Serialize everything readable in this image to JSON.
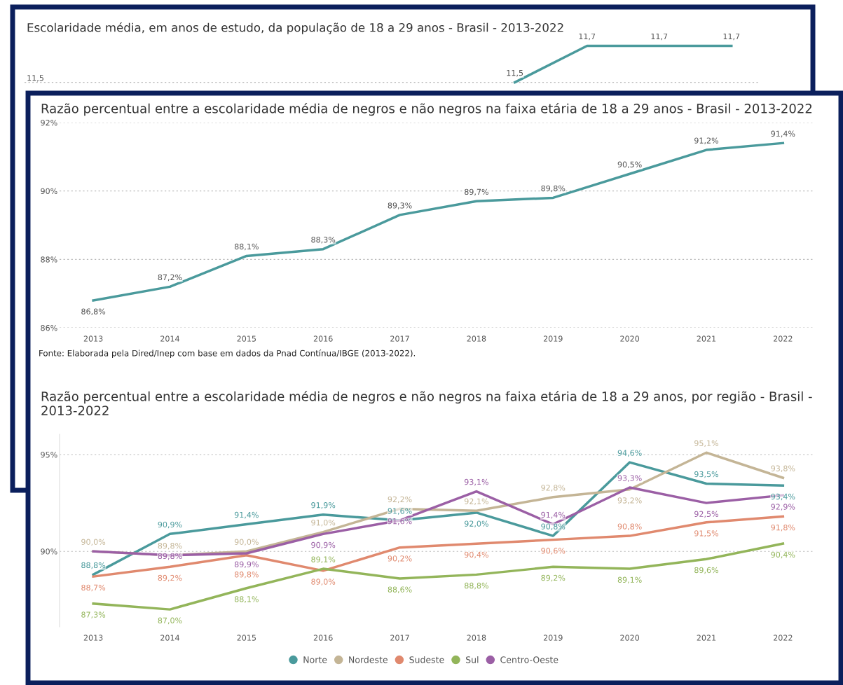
{
  "chart_data": [
    {
      "type": "line",
      "title": "Escolaridade média, em anos de estudo, da população de 18 a 29 anos - Brasil - 2013-2022",
      "categories": [
        null,
        null,
        null,
        null,
        null,
        null,
        null,
        null,
        null,
        null
      ],
      "ref_lines": [
        {
          "axis": "y",
          "value": 11.5,
          "label": "11,5",
          "line_style": "dotted"
        }
      ],
      "series": [
        {
          "color": "#4a9a9c",
          "values": [
            null,
            null,
            null,
            null,
            null,
            null,
            11.5,
            11.7,
            11.7,
            11.7
          ],
          "value_labels": [
            null,
            null,
            null,
            null,
            null,
            null,
            "11,5",
            "11,7",
            "11,7",
            "11,7"
          ]
        }
      ]
    },
    {
      "type": "line",
      "title": "Razão percentual entre a escolaridade média de negros e não negros na faixa etária de 18 a 29 anos - Brasil - 2013-2022",
      "categories": [
        "2013",
        "2014",
        "2015",
        "2016",
        "2017",
        "2018",
        "2019",
        "2020",
        "2021",
        "2022"
      ],
      "ylim": [
        86,
        92
      ],
      "yticks": [
        {
          "value": 86,
          "label": "86%"
        },
        {
          "value": 88,
          "label": "88%"
        },
        {
          "value": 90,
          "label": "90%"
        },
        {
          "value": 92,
          "label": "92%"
        }
      ],
      "grid": "y",
      "annotations": [
        "Fonte: Elaborada pela Dired/Inep com base em dados da Pnad Contínua/IBGE (2013-2022)."
      ],
      "series": [
        {
          "color": "#4a9a9c",
          "values": [
            86.8,
            87.2,
            88.1,
            88.3,
            89.3,
            89.7,
            89.8,
            90.5,
            91.2,
            91.4
          ],
          "value_labels": [
            "86,8%",
            "87,2%",
            "88,1%",
            "88,3%",
            "89,3%",
            "89,7%",
            "89,8%",
            "90,5%",
            "91,2%",
            "91,4%"
          ]
        }
      ]
    },
    {
      "type": "line",
      "title": "Razão percentual entre a escolaridade média de negros e não negros na faixa etária de 18 a 29 anos, por região - Brasil - 2013-2022",
      "categories": [
        "2013",
        "2014",
        "2015",
        "2016",
        "2017",
        "2018",
        "2019",
        "2020",
        "2021",
        "2022"
      ],
      "ylim": [
        86.1,
        96.05
      ],
      "yticks": [
        {
          "value": 90,
          "label": "90%"
        },
        {
          "value": 95,
          "label": "95%"
        }
      ],
      "grid": "y",
      "legend": "bottom",
      "series": [
        {
          "name": "Norte",
          "color": "#4a9a9c",
          "values": [
            88.8,
            90.9,
            91.4,
            91.9,
            91.6,
            92.0,
            90.8,
            94.6,
            93.5,
            93.4
          ],
          "value_labels": [
            "88,8%",
            "90,9%",
            "91,4%",
            "91,9%",
            "91,6%",
            "92,0%",
            "90,8%",
            "94,6%",
            "93,5%",
            "93,4%"
          ]
        },
        {
          "name": "Nordeste",
          "color": "#c4b596",
          "values": [
            90.0,
            89.8,
            90.0,
            91.0,
            92.2,
            92.1,
            92.8,
            93.2,
            95.1,
            93.8
          ],
          "value_labels": [
            "90,0%",
            "89,8%",
            "90,0%",
            "91,0%",
            "92,2%",
            "92,1%",
            "92,8%",
            "93,2%",
            "95,1%",
            "93,8%"
          ]
        },
        {
          "name": "Sudeste",
          "color": "#e0896e",
          "values": [
            88.7,
            89.2,
            89.8,
            89.0,
            90.2,
            90.4,
            90.6,
            90.8,
            91.5,
            91.8
          ],
          "value_labels": [
            "88,7%",
            "89,2%",
            "89,8%",
            "89,0%",
            "90,2%",
            "90,4%",
            "90,6%",
            "90,8%",
            "91,5%",
            "91,8%"
          ]
        },
        {
          "name": "Sul",
          "color": "#93b55a",
          "values": [
            87.3,
            87.0,
            88.1,
            89.1,
            88.6,
            88.8,
            89.2,
            89.1,
            89.6,
            90.4
          ],
          "value_labels": [
            "87,3%",
            "87,0%",
            "88,1%",
            "89,1%",
            "88,6%",
            "88,8%",
            "89,2%",
            "89,1%",
            "89,6%",
            "90,4%"
          ]
        },
        {
          "name": "Centro-Oeste",
          "color": "#9b5fa5",
          "values": [
            90.0,
            89.8,
            89.9,
            90.9,
            91.6,
            93.1,
            91.4,
            93.3,
            92.5,
            92.9
          ],
          "value_labels": [
            null,
            "89,8%",
            "89,9%",
            "90,9%",
            "91,6%",
            "93,1%",
            "91,4%",
            "93,3%",
            "92,5%",
            "92,9%"
          ]
        }
      ]
    }
  ]
}
